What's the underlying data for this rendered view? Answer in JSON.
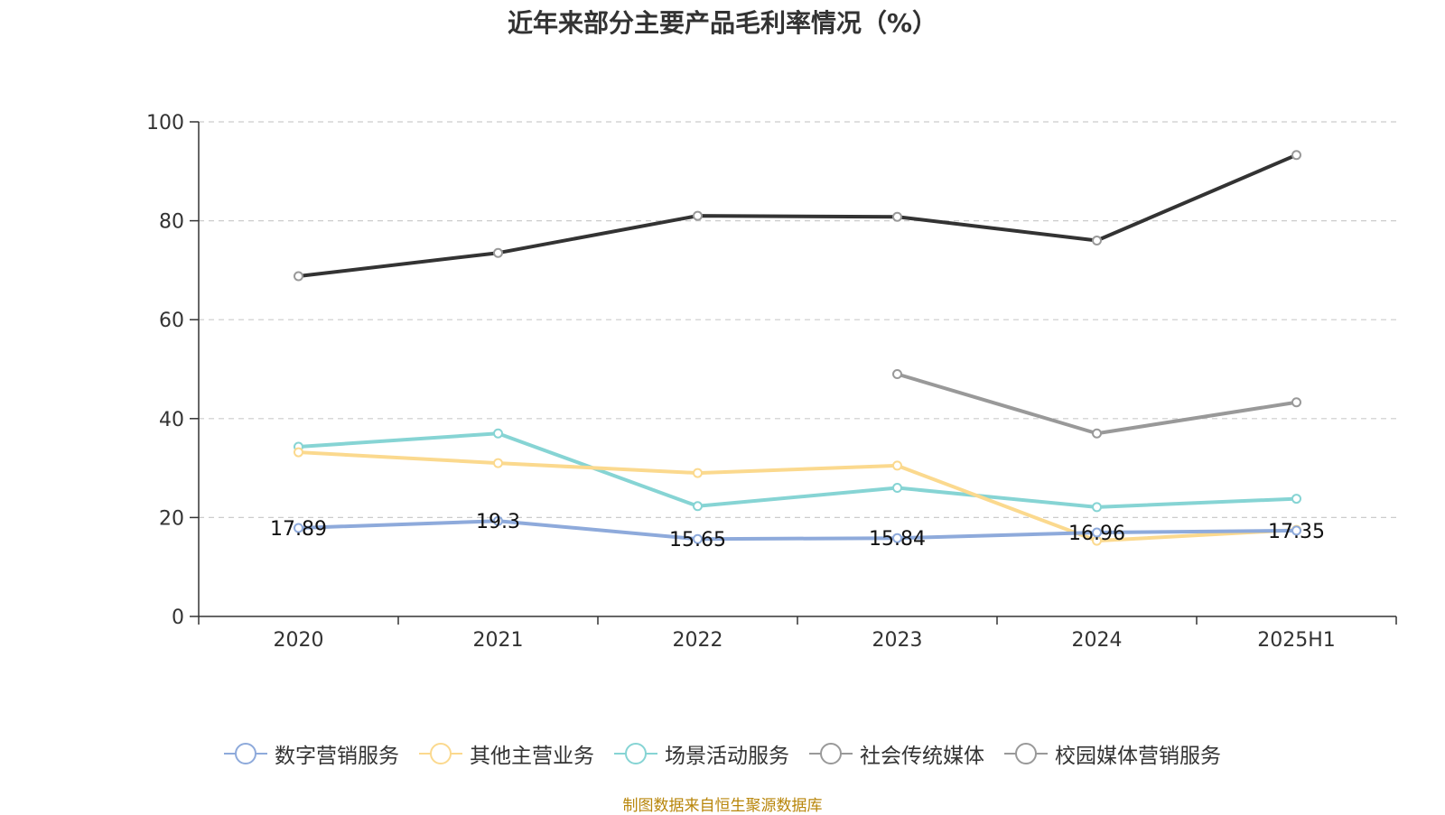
{
  "chart_data": {
    "type": "line",
    "title": "近年来部分主要产品毛利率情况（%）",
    "categories": [
      "2020",
      "2021",
      "2022",
      "2023",
      "2024",
      "2025H1"
    ],
    "ylim": [
      0,
      100
    ],
    "yticks": [
      0,
      20,
      40,
      60,
      80,
      100
    ],
    "grid": true,
    "legend_position": "bottom",
    "series": [
      {
        "name": "数字营销服务",
        "color": "#8eaadb",
        "values": [
          17.89,
          19.3,
          15.65,
          15.84,
          16.96,
          17.35
        ],
        "data_labels": [
          "17.89",
          "19.3",
          "15.65",
          "15.84",
          "16.96",
          "17.35"
        ]
      },
      {
        "name": "其他主营业务",
        "color": "#fbd98e",
        "values": [
          33.2,
          31.0,
          29.0,
          30.5,
          15.3,
          17.5
        ]
      },
      {
        "name": "场景活动服务",
        "color": "#86d4d4",
        "values": [
          34.3,
          37.0,
          22.3,
          26.0,
          22.1,
          23.8
        ]
      },
      {
        "name": "社会传统媒体",
        "color": "#999999",
        "values": [
          null,
          null,
          null,
          49.0,
          37.0,
          43.3
        ]
      },
      {
        "name": "校园媒体营销服务",
        "color": "#333333",
        "legend_color": "#999999",
        "values": [
          68.8,
          73.5,
          81.0,
          80.8,
          76.0,
          93.3
        ]
      }
    ]
  },
  "source_note": "制图数据来自恒生聚源数据库"
}
